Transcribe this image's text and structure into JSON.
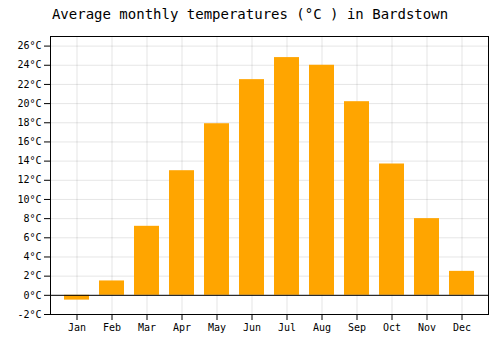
{
  "chart_data": {
    "type": "bar",
    "title": "Average monthly temperatures (°C ) in Bardstown",
    "categories": [
      "Jan",
      "Feb",
      "Mar",
      "Apr",
      "May",
      "Jun",
      "Jul",
      "Aug",
      "Sep",
      "Oct",
      "Nov",
      "Dec"
    ],
    "values": [
      -0.5,
      1.5,
      7.2,
      13.0,
      17.9,
      22.5,
      24.8,
      24.0,
      20.2,
      13.7,
      8.0,
      2.5
    ],
    "color": "#FFA500",
    "ylim": [
      -2,
      27
    ],
    "yticks": [
      {
        "value": -2,
        "label": "-2°C"
      },
      {
        "value": 0,
        "label": "0°C"
      },
      {
        "value": 2,
        "label": "2°C"
      },
      {
        "value": 4,
        "label": "4°C"
      },
      {
        "value": 6,
        "label": "6°C"
      },
      {
        "value": 8,
        "label": "8°C"
      },
      {
        "value": 10,
        "label": "10°C"
      },
      {
        "value": 12,
        "label": "12°C"
      },
      {
        "value": 14,
        "label": "14°C"
      },
      {
        "value": 16,
        "label": "16°C"
      },
      {
        "value": 18,
        "label": "18°C"
      },
      {
        "value": 20,
        "label": "20°C"
      },
      {
        "value": 22,
        "label": "22°C"
      },
      {
        "value": 24,
        "label": "24°C"
      },
      {
        "value": 26,
        "label": "26°C"
      }
    ],
    "grid": true
  }
}
